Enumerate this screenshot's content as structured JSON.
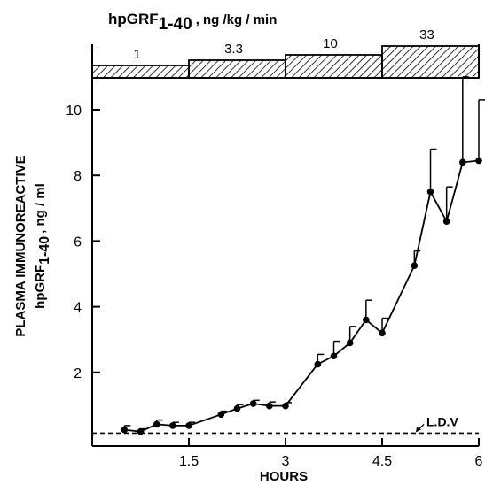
{
  "chart_data": {
    "type": "line",
    "title": "",
    "xlabel": "HOURS",
    "ylabel": "PLASMA IMMUNOREACTIVE hpGRF 1-40 , ng / ml",
    "ylabel_line1": "PLASMA IMMUNOREACTIVE",
    "ylabel_main": "hpGRF",
    "ylabel_sub": "1-40",
    "ylabel_unit": ", ng / ml",
    "xlim": [
      0,
      6
    ],
    "ylim": [
      0,
      11
    ],
    "xticks": [
      1.5,
      3,
      4.5,
      6
    ],
    "xtick_labels": [
      "1.5",
      "3",
      "4.5",
      "6"
    ],
    "yticks": [
      2,
      4,
      6,
      8,
      10
    ],
    "ytick_labels": [
      "2",
      "4",
      "6",
      "8",
      "10"
    ],
    "grid": false,
    "series": [
      {
        "x": [
          0.5,
          0.75,
          1.0,
          1.25,
          1.5,
          2.0,
          2.25,
          2.5,
          2.75,
          3.0,
          3.5,
          3.75,
          4.0,
          4.25,
          4.5,
          5.0,
          5.25,
          5.5,
          5.75,
          6.0
        ],
        "y": [
          0.25,
          0.2,
          0.42,
          0.38,
          0.38,
          0.72,
          0.9,
          1.05,
          0.98,
          0.98,
          2.25,
          2.5,
          2.9,
          3.6,
          3.2,
          5.25,
          7.5,
          6.6,
          8.4,
          8.45
        ],
        "error_upper": [
          0.38,
          0.28,
          0.55,
          0.48,
          0.48,
          0.82,
          1.02,
          1.15,
          1.1,
          1.08,
          2.55,
          2.95,
          3.4,
          4.2,
          3.65,
          5.7,
          8.8,
          7.65,
          11.0,
          10.3
        ]
      }
    ],
    "annotations": [
      {
        "text": "L.D.V",
        "x": 5.7,
        "y": 0.15,
        "kind": "dashed-reference-line"
      }
    ],
    "infusion_bar": {
      "title_main": "hpGRF",
      "title_sub": "1-40",
      "title_unit": ", ng /kg / min",
      "segments": [
        {
          "label": "1",
          "from": 0,
          "to": 1.5,
          "level": 1
        },
        {
          "label": "3.3",
          "from": 1.5,
          "to": 3,
          "level": 2
        },
        {
          "label": "10",
          "from": 3,
          "to": 4.5,
          "level": 3
        },
        {
          "label": "33",
          "from": 4.5,
          "to": 6,
          "level": 4
        }
      ]
    }
  }
}
